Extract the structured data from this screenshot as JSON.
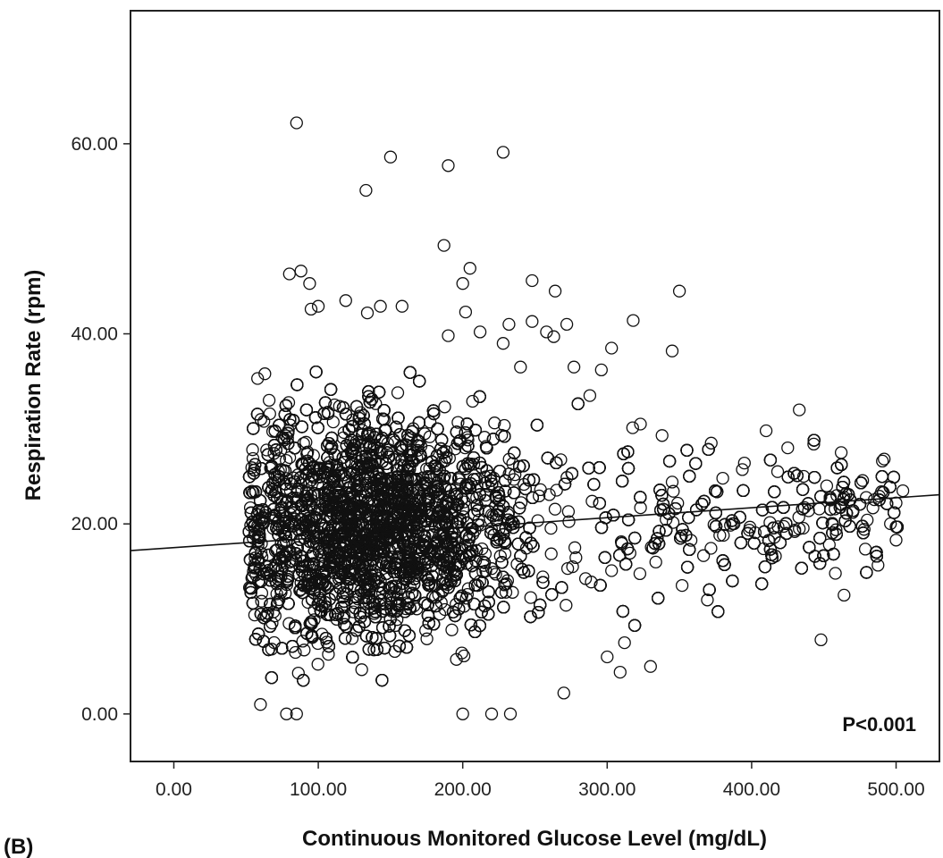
{
  "chart_data": {
    "type": "scatter",
    "panel_label": "(B)",
    "title": "",
    "xlabel": "Continuous Monitored Glucose Level (mg/dL)",
    "ylabel": "Respiration Rate (rpm)",
    "xlim": [
      -30,
      530
    ],
    "ylim": [
      -5,
      74
    ],
    "x_ticks": [
      0,
      100,
      200,
      300,
      400,
      500
    ],
    "x_tick_labels": [
      "0.00",
      "100.00",
      "200.00",
      "300.00",
      "400.00",
      "500.00"
    ],
    "y_ticks": [
      0,
      20,
      40,
      60
    ],
    "y_tick_labels": [
      "0.00",
      "20.00",
      "40.00",
      "60.00"
    ],
    "grid": false,
    "annotation": "P<0.001",
    "fit_line": {
      "intercept": 17.5,
      "slope": 0.0105
    },
    "marker": "open-circle",
    "point_color": "#111111",
    "outlier_points": [
      {
        "x": 85,
        "y": 62.2
      },
      {
        "x": 150,
        "y": 58.6
      },
      {
        "x": 190,
        "y": 57.7
      },
      {
        "x": 228,
        "y": 59.1
      },
      {
        "x": 133,
        "y": 55.1
      },
      {
        "x": 187,
        "y": 49.3
      },
      {
        "x": 205,
        "y": 46.9
      },
      {
        "x": 200,
        "y": 45.3
      },
      {
        "x": 248,
        "y": 45.6
      },
      {
        "x": 264,
        "y": 44.5
      },
      {
        "x": 350,
        "y": 44.5
      },
      {
        "x": 80,
        "y": 46.3
      },
      {
        "x": 88,
        "y": 46.6
      },
      {
        "x": 94,
        "y": 45.3
      },
      {
        "x": 95,
        "y": 42.6
      },
      {
        "x": 100,
        "y": 42.9
      },
      {
        "x": 119,
        "y": 43.5
      },
      {
        "x": 134,
        "y": 42.2
      },
      {
        "x": 143,
        "y": 42.9
      },
      {
        "x": 158,
        "y": 42.9
      },
      {
        "x": 202,
        "y": 42.3
      },
      {
        "x": 248,
        "y": 41.3
      },
      {
        "x": 272,
        "y": 41.0
      },
      {
        "x": 318,
        "y": 41.4
      },
      {
        "x": 212,
        "y": 40.2
      },
      {
        "x": 232,
        "y": 41.0
      },
      {
        "x": 258,
        "y": 40.2
      },
      {
        "x": 303,
        "y": 38.5
      },
      {
        "x": 345,
        "y": 38.2
      },
      {
        "x": 228,
        "y": 39.0
      },
      {
        "x": 190,
        "y": 39.8
      },
      {
        "x": 58,
        "y": 35.3
      },
      {
        "x": 63,
        "y": 35.8
      },
      {
        "x": 66,
        "y": 33.0
      },
      {
        "x": 70,
        "y": 29.8
      },
      {
        "x": 410,
        "y": 29.8
      },
      {
        "x": 433,
        "y": 32.0
      },
      {
        "x": 443,
        "y": 28.4
      },
      {
        "x": 462,
        "y": 27.5
      },
      {
        "x": 448,
        "y": 7.8
      },
      {
        "x": 486,
        "y": 17.0
      },
      {
        "x": 500,
        "y": 18.3
      },
      {
        "x": 500,
        "y": 19.7
      },
      {
        "x": 500,
        "y": 22.2
      },
      {
        "x": 480,
        "y": 20.4
      },
      {
        "x": 464,
        "y": 12.5
      },
      {
        "x": 458,
        "y": 14.8
      },
      {
        "x": 309,
        "y": 4.4
      },
      {
        "x": 330,
        "y": 5.0
      },
      {
        "x": 300,
        "y": 6.0
      },
      {
        "x": 312,
        "y": 7.5
      },
      {
        "x": 270,
        "y": 2.2
      },
      {
        "x": 233,
        "y": 0.0
      },
      {
        "x": 220,
        "y": 0.0
      },
      {
        "x": 200,
        "y": 0.0
      },
      {
        "x": 60,
        "y": 1.0
      },
      {
        "x": 78,
        "y": 0.0
      },
      {
        "x": 85,
        "y": 0.0
      },
      {
        "x": 53,
        "y": 21.7
      },
      {
        "x": 53,
        "y": 16.2
      },
      {
        "x": 55,
        "y": 15.0
      },
      {
        "x": 58,
        "y": 19.8
      },
      {
        "x": 418,
        "y": 25.5
      },
      {
        "x": 436,
        "y": 25.0
      },
      {
        "x": 452,
        "y": 24.0
      },
      {
        "x": 470,
        "y": 21.2
      },
      {
        "x": 464,
        "y": 22.8
      },
      {
        "x": 425,
        "y": 28.0
      },
      {
        "x": 395,
        "y": 26.4
      },
      {
        "x": 380,
        "y": 24.8
      },
      {
        "x": 372,
        "y": 28.5
      },
      {
        "x": 338,
        "y": 29.3
      },
      {
        "x": 323,
        "y": 30.5
      },
      {
        "x": 288,
        "y": 33.5
      },
      {
        "x": 296,
        "y": 36.2
      },
      {
        "x": 277,
        "y": 36.5
      },
      {
        "x": 263,
        "y": 39.7
      },
      {
        "x": 240,
        "y": 36.5
      }
    ],
    "dense_cloud": {
      "n_points": 9000,
      "x_center": 140,
      "x_spread": 45,
      "x_range": [
        52,
        505
      ],
      "y_center": 19.5,
      "y_spread_near": 6.2,
      "y_spread_far": 2.8,
      "y_range": [
        0,
        36
      ]
    }
  }
}
